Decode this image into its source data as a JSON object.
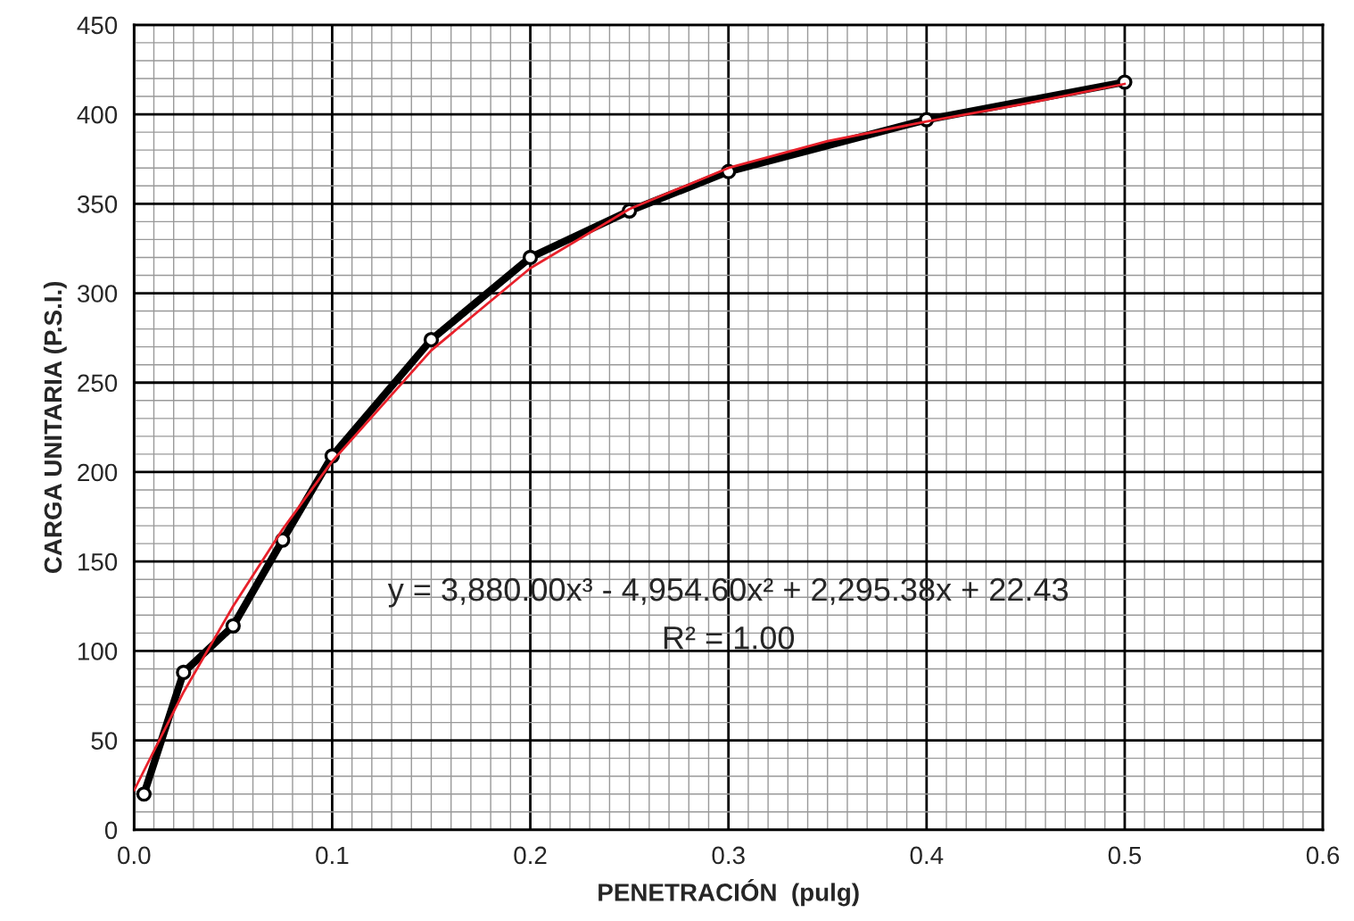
{
  "chart_data": {
    "type": "line",
    "xlabel": "PENETRACIÓN  (pulg)",
    "ylabel": "CARGA UNITARIA (P.S.I.)",
    "xlim": [
      0,
      0.6
    ],
    "xticks": [
      {
        "value": 0,
        "label": "0.0"
      },
      0.1,
      0.2,
      0.3,
      0.4,
      0.5,
      0.6
    ],
    "ylim": [
      0,
      450
    ],
    "yticks": [
      0,
      50,
      100,
      150,
      200,
      250,
      300,
      350,
      400,
      450
    ],
    "grid": true,
    "series": [
      {
        "color": "#000000",
        "marker": "circle",
        "x": [
          0.005,
          0.025,
          0.05,
          0.075,
          0.1,
          0.15,
          0.2,
          0.25,
          0.3,
          0.4,
          0.5
        ],
        "values": [
          20,
          88,
          114,
          162,
          209,
          274,
          320,
          346,
          368,
          397,
          418
        ]
      },
      {
        "color": "#e8202a",
        "marker": "none",
        "x": [
          0,
          0.025,
          0.05,
          0.075,
          0.1,
          0.15,
          0.2,
          0.25,
          0.3,
          0.35,
          0.4,
          0.45,
          0.5
        ],
        "values": [
          22,
          77,
          125,
          168,
          206,
          268,
          314,
          347,
          370,
          385,
          396,
          406,
          417
        ]
      }
    ],
    "annotations": [
      "y = 3,880.00x³ - 4,954.60x² + 2,295.38x + 22.43",
      "R² = 1.00"
    ]
  }
}
